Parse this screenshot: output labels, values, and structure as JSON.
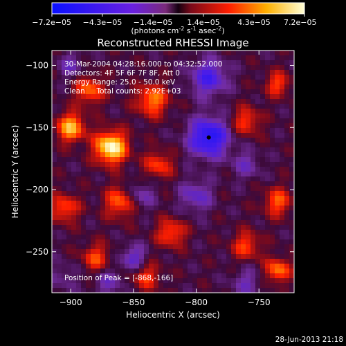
{
  "chart_data": {
    "type": "heatmap",
    "title": "Reconstructed RHESSI Image",
    "xlabel": "Heliocentric X (arcsec)",
    "ylabel": "Heliocentric Y (arcsec)",
    "xlim": [
      -915,
      -722
    ],
    "ylim": [
      -283,
      -88
    ],
    "x_ticks": [
      {
        "v": -900,
        "label": "-900"
      },
      {
        "v": -850,
        "label": "-850"
      },
      {
        "v": -800,
        "label": "-800"
      },
      {
        "v": -750,
        "label": "-750"
      }
    ],
    "y_ticks": [
      {
        "v": -100,
        "label": "-100"
      },
      {
        "v": -150,
        "label": "-150"
      },
      {
        "v": -200,
        "label": "-200"
      },
      {
        "v": -250,
        "label": "-250"
      }
    ],
    "colorbar": {
      "range": [
        -7.2e-05,
        7.2e-05
      ],
      "tick_labels": [
        "-7.2e-05",
        "-4.3e-05",
        "-1.4e-05",
        "1.4e-05",
        "4.3e-05",
        "7.2e-05"
      ],
      "units_label": "(photons cm-2 s-1 asec-2)"
    },
    "annotations": [
      "30-Mar-2004 04:28:16.000 to 04:32:52.000",
      "Detectors: 4F 5F 6F 7F 8F, Att 0",
      "Energy Range: 25.0 - 50.0 keV",
      "Clean     Total counts: 2.92E+03"
    ],
    "peak_label": "Position of Peak = [-868,-166]",
    "marker": {
      "x": -790,
      "y": -158
    },
    "components": [
      {
        "x": -868,
        "y": -166,
        "v": 1.0,
        "s": 9
      },
      {
        "x": -900,
        "y": -150,
        "v": 0.75,
        "s": 8
      },
      {
        "x": -835,
        "y": -128,
        "v": 0.6,
        "s": 9
      },
      {
        "x": -885,
        "y": -120,
        "v": 0.55,
        "s": 8
      },
      {
        "x": -760,
        "y": -145,
        "v": 0.45,
        "s": 8
      },
      {
        "x": -735,
        "y": -115,
        "v": 0.45,
        "s": 7
      },
      {
        "x": -735,
        "y": -210,
        "v": 0.5,
        "s": 8
      },
      {
        "x": -860,
        "y": -210,
        "v": 0.55,
        "s": 9
      },
      {
        "x": -905,
        "y": -215,
        "v": 0.5,
        "s": 8
      },
      {
        "x": -820,
        "y": -235,
        "v": 0.5,
        "s": 8
      },
      {
        "x": -760,
        "y": -245,
        "v": 0.45,
        "s": 8
      },
      {
        "x": -735,
        "y": -265,
        "v": 0.6,
        "s": 7
      },
      {
        "x": -880,
        "y": -255,
        "v": 0.45,
        "s": 8
      },
      {
        "x": -830,
        "y": -180,
        "v": 0.45,
        "s": 8
      },
      {
        "x": -840,
        "y": -270,
        "v": 0.4,
        "s": 8
      },
      {
        "x": -790,
        "y": -158,
        "v": -0.85,
        "s": 11
      },
      {
        "x": -790,
        "y": -110,
        "v": -0.6,
        "s": 10
      },
      {
        "x": -845,
        "y": -205,
        "v": -0.35,
        "s": 8
      },
      {
        "x": -800,
        "y": -205,
        "v": -0.4,
        "s": 9
      },
      {
        "x": -870,
        "y": -275,
        "v": -0.3,
        "s": 8
      },
      {
        "x": -760,
        "y": -275,
        "v": -0.3,
        "s": 8
      },
      {
        "x": -900,
        "y": -100,
        "v": -0.3,
        "s": 7
      },
      {
        "x": -850,
        "y": -255,
        "v": -0.45,
        "s": 7
      },
      {
        "x": -760,
        "y": -180,
        "v": -0.3,
        "s": 8
      },
      {
        "x": -905,
        "y": -270,
        "v": -0.2,
        "s": 8
      }
    ]
  },
  "footer": {
    "date": "28-Jun-2013 21:18"
  }
}
